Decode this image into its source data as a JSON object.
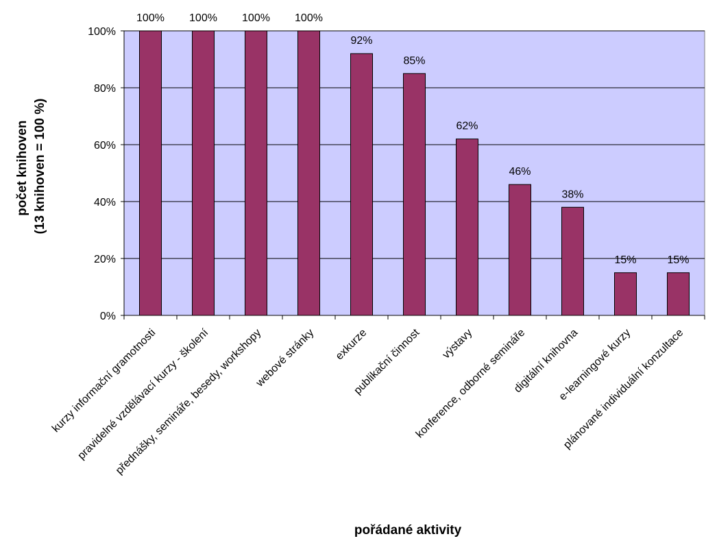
{
  "chart_data": {
    "type": "bar",
    "title": "",
    "xlabel": "pořádané aktivity",
    "ylabel_lines": [
      "počet knihoven",
      "(13 knihoven = 100 %)"
    ],
    "categories": [
      "kurzy informační gramotnosti",
      "pravidelné vzdělávací kurzy - školení",
      "přednášky, semináře, besedy, workshopy",
      "webové stránky",
      "exkurze",
      "publikační činnost",
      "výstavy",
      "konference, odborné semináře",
      "digitální knihovna",
      "e-learningové kurzy",
      "plánované individuální konzultace"
    ],
    "values": [
      100,
      100,
      100,
      100,
      92,
      85,
      62,
      46,
      38,
      15,
      15
    ],
    "data_labels": [
      "100%",
      "100%",
      "100%",
      "100%",
      "92%",
      "85%",
      "62%",
      "46%",
      "38%",
      "15%",
      "15%"
    ],
    "ylim": [
      0,
      100
    ],
    "yticks": [
      0,
      20,
      40,
      60,
      80,
      100
    ],
    "ytick_labels": [
      "0%",
      "20%",
      "40%",
      "60%",
      "80%",
      "100%"
    ],
    "grid": true,
    "legend": "none",
    "colors": {
      "bar": "#993366",
      "plot_background": "#ccccff",
      "gridline": "#000000"
    }
  }
}
